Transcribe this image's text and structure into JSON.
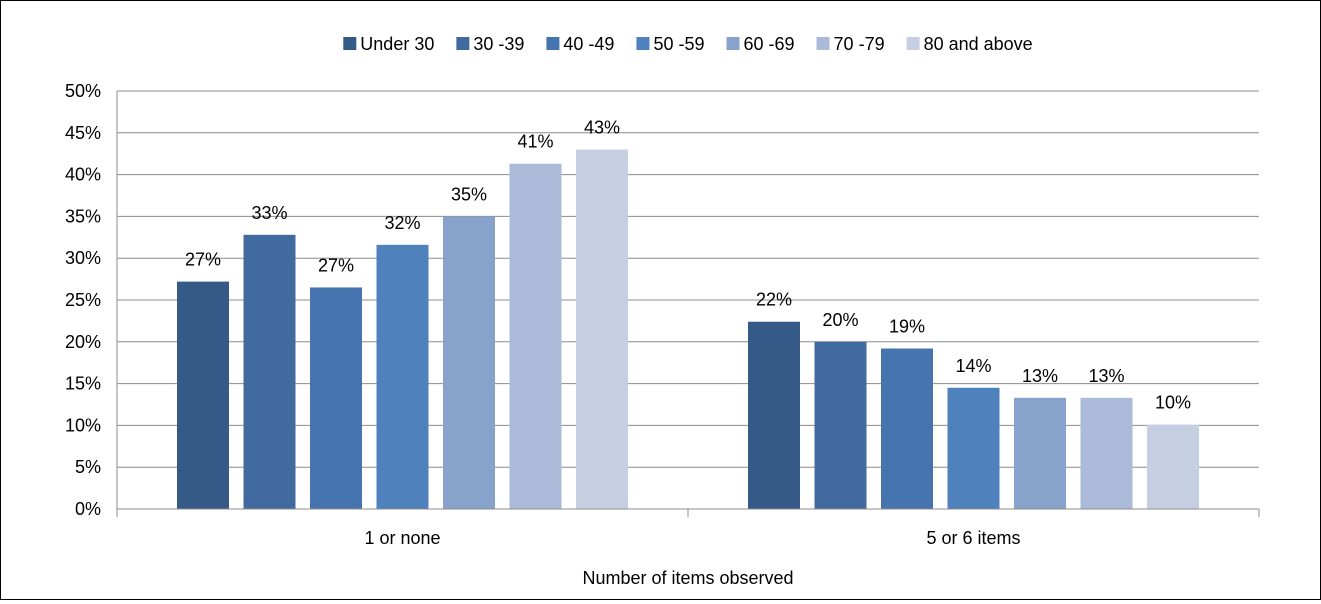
{
  "chart_data": {
    "type": "bar",
    "xlabel": "Number of items observed",
    "ylabel": "",
    "ylim": [
      0,
      50
    ],
    "ytick_step": 5,
    "ytick_suffix": "%",
    "grid": true,
    "legend_position": "top",
    "categories": [
      "1 or none",
      "5 or 6 items"
    ],
    "series": [
      {
        "name": "Under 30",
        "color": "#355a87",
        "values": [
          27.2,
          22.4
        ],
        "labels": [
          "27%",
          "22%"
        ]
      },
      {
        "name": "30 -39",
        "color": "#416b9e",
        "values": [
          32.8,
          20.0
        ],
        "labels": [
          "33%",
          "20%"
        ]
      },
      {
        "name": "40 -49",
        "color": "#4674af",
        "values": [
          26.5,
          19.2
        ],
        "labels": [
          "27%",
          "19%"
        ]
      },
      {
        "name": "50 -59",
        "color": "#4f81bd",
        "values": [
          31.6,
          14.5
        ],
        "labels": [
          "32%",
          "14%"
        ]
      },
      {
        "name": "60 -69",
        "color": "#87a2cb",
        "values": [
          35.0,
          13.3
        ],
        "labels": [
          "35%",
          "13%"
        ]
      },
      {
        "name": "70 -79",
        "color": "#abbad9",
        "values": [
          41.3,
          13.3
        ],
        "labels": [
          "41%",
          "13%"
        ]
      },
      {
        "name": "80 and above",
        "color": "#c6cfe2",
        "values": [
          43.0,
          10.1
        ],
        "labels": [
          "43%",
          "10%"
        ]
      }
    ]
  }
}
